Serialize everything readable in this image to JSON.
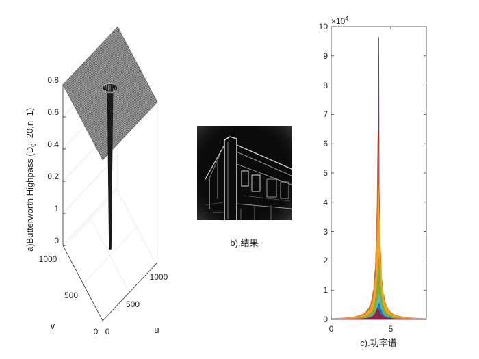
{
  "figure": {
    "panel_a": {
      "ylabel_prefix": "a)Butterworth Highpass (D",
      "ylabel_sub": "0",
      "ylabel_suffix": "=20,n=1)",
      "xlabel": "u",
      "vlabel": "v",
      "z_ticks": [
        "0",
        "0.2",
        "0.4",
        "0.6",
        "0.8",
        "1"
      ],
      "u_ticks": [
        "0",
        "500",
        "1000"
      ],
      "v_ticks": [
        "0",
        "500",
        "1000"
      ]
    },
    "panel_b": {
      "caption": "b).结果"
    },
    "panel_c": {
      "xlabel": "c).功率谱",
      "x_ticks": [
        "0",
        "5"
      ],
      "y_ticks": [
        "0",
        "1",
        "2",
        "3",
        "4",
        "5",
        "6",
        "7",
        "8",
        "9",
        "10"
      ],
      "exponent_base": "×10",
      "exponent_power": "4"
    }
  },
  "chart_data": [
    {
      "type": "surface",
      "zlabel": "a)Butterworth Highpass (D0=20,n=1)",
      "xlabel": "u",
      "ylabel": "v",
      "xlim": [
        0,
        1024
      ],
      "ylim": [
        0,
        1024
      ],
      "zlim": [
        0,
        1
      ],
      "z_ticks": [
        0,
        0.2,
        0.4,
        0.6,
        0.8,
        1
      ],
      "u_ticks": [
        0,
        500,
        1000
      ],
      "v_ticks": [
        0,
        500,
        1000
      ],
      "surface_min": 0.03,
      "surface_max": 1
    },
    {
      "type": "line",
      "xlabel": "c).功率谱",
      "xlim": [
        0,
        8
      ],
      "ylim": [
        0,
        100000
      ],
      "x_ticks": [
        0,
        5
      ],
      "y_ticks": [
        0,
        10000,
        20000,
        30000,
        40000,
        50000,
        60000,
        70000,
        80000,
        90000,
        100000
      ],
      "series": [
        {
          "color": "#7E2F8E",
          "peak_x": 4.0,
          "peak": 96500
        },
        {
          "color": "#D95319",
          "peak_x": 3.95,
          "peak": 68500
        },
        {
          "color": "#EDB120",
          "peak_x": 3.98,
          "peak": 47000
        },
        {
          "color": "#77AC30",
          "peak_x": 4.0,
          "peak": 21000
        },
        {
          "color": "#4DBEEE",
          "peak_x": 4.0,
          "peak": 9000
        },
        {
          "color": "#0072BD",
          "peak_x": 4.02,
          "peak": 6000
        },
        {
          "color": "#A2142F",
          "peak_x": 3.9,
          "peak": 4000
        }
      ]
    }
  ]
}
